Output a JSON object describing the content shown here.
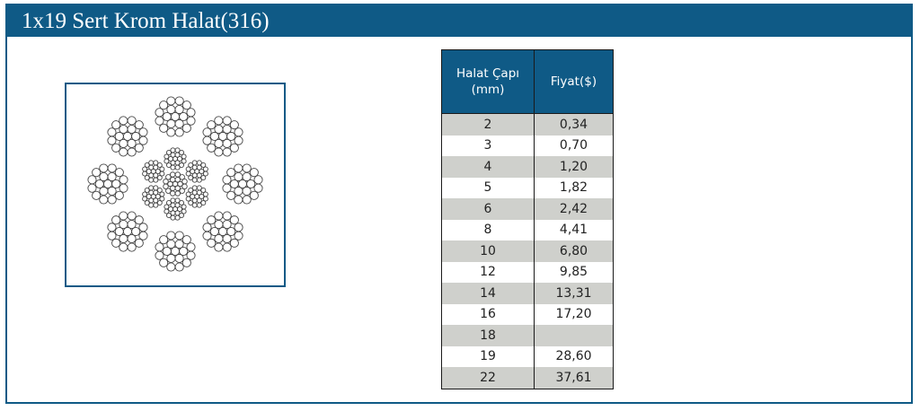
{
  "header": {
    "title": "1x19 Sert Krom Halat(316)"
  },
  "diagram": {
    "icon": "wire-rope-cross-section-icon"
  },
  "colors": {
    "brand": "#0f5a86",
    "row_shade": "#cfd0cc",
    "stroke": "#444444"
  },
  "table": {
    "col1_line1": "Halat Çapı",
    "col1_line2": "(mm)",
    "col2": "Fiyat($)",
    "rows": [
      {
        "diameter": "2",
        "price": "0,34"
      },
      {
        "diameter": "3",
        "price": "0,70"
      },
      {
        "diameter": "4",
        "price": "1,20"
      },
      {
        "diameter": "5",
        "price": "1,82"
      },
      {
        "diameter": "6",
        "price": "2,42"
      },
      {
        "diameter": "8",
        "price": "4,41"
      },
      {
        "diameter": "10",
        "price": "6,80"
      },
      {
        "diameter": "12",
        "price": "9,85"
      },
      {
        "diameter": "14",
        "price": "13,31"
      },
      {
        "diameter": "16",
        "price": "17,20"
      },
      {
        "diameter": "18",
        "price": ""
      },
      {
        "diameter": "19",
        "price": "28,60"
      },
      {
        "diameter": "22",
        "price": "37,61"
      }
    ]
  }
}
